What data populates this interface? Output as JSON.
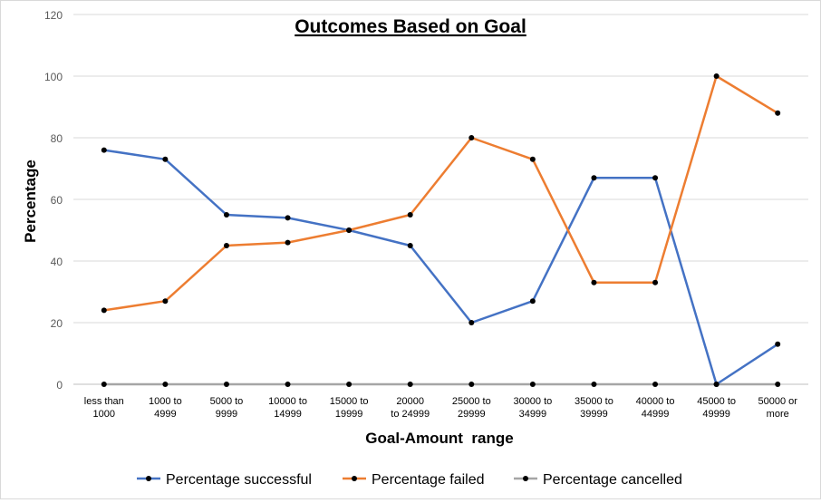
{
  "chart_data": {
    "type": "line",
    "title": "Outcomes Based on Goal",
    "xlabel": "Goal-Amount  range",
    "ylabel": "Percentage",
    "ylim": [
      0,
      120
    ],
    "yticks": [
      "0",
      "20",
      "40",
      "60",
      "80",
      "100",
      "120"
    ],
    "grid": true,
    "legend_position": "bottom",
    "categories": [
      [
        "less than",
        "1000"
      ],
      [
        "1000 to",
        "4999"
      ],
      [
        "5000 to",
        "9999"
      ],
      [
        "10000 to",
        "14999"
      ],
      [
        "15000 to",
        "19999"
      ],
      [
        "20000",
        "to 24999"
      ],
      [
        "25000 to",
        "29999"
      ],
      [
        "30000 to",
        "34999"
      ],
      [
        "35000 to",
        "39999"
      ],
      [
        "40000 to",
        "44999"
      ],
      [
        "45000 to",
        "49999"
      ],
      [
        "50000 or",
        "more"
      ]
    ],
    "series": [
      {
        "name": "Percentage successful",
        "color": "#4472C4",
        "values": [
          76,
          73,
          55,
          54,
          50,
          45,
          20,
          27,
          67,
          67,
          0,
          13
        ]
      },
      {
        "name": "Percentage failed",
        "color": "#ED7D31",
        "values": [
          24,
          27,
          45,
          46,
          50,
          55,
          80,
          73,
          33,
          33,
          100,
          88
        ]
      },
      {
        "name": "Percentage cancelled",
        "color": "#A5A5A5",
        "values": [
          0,
          0,
          0,
          0,
          0,
          0,
          0,
          0,
          0,
          0,
          0,
          0
        ]
      }
    ]
  }
}
